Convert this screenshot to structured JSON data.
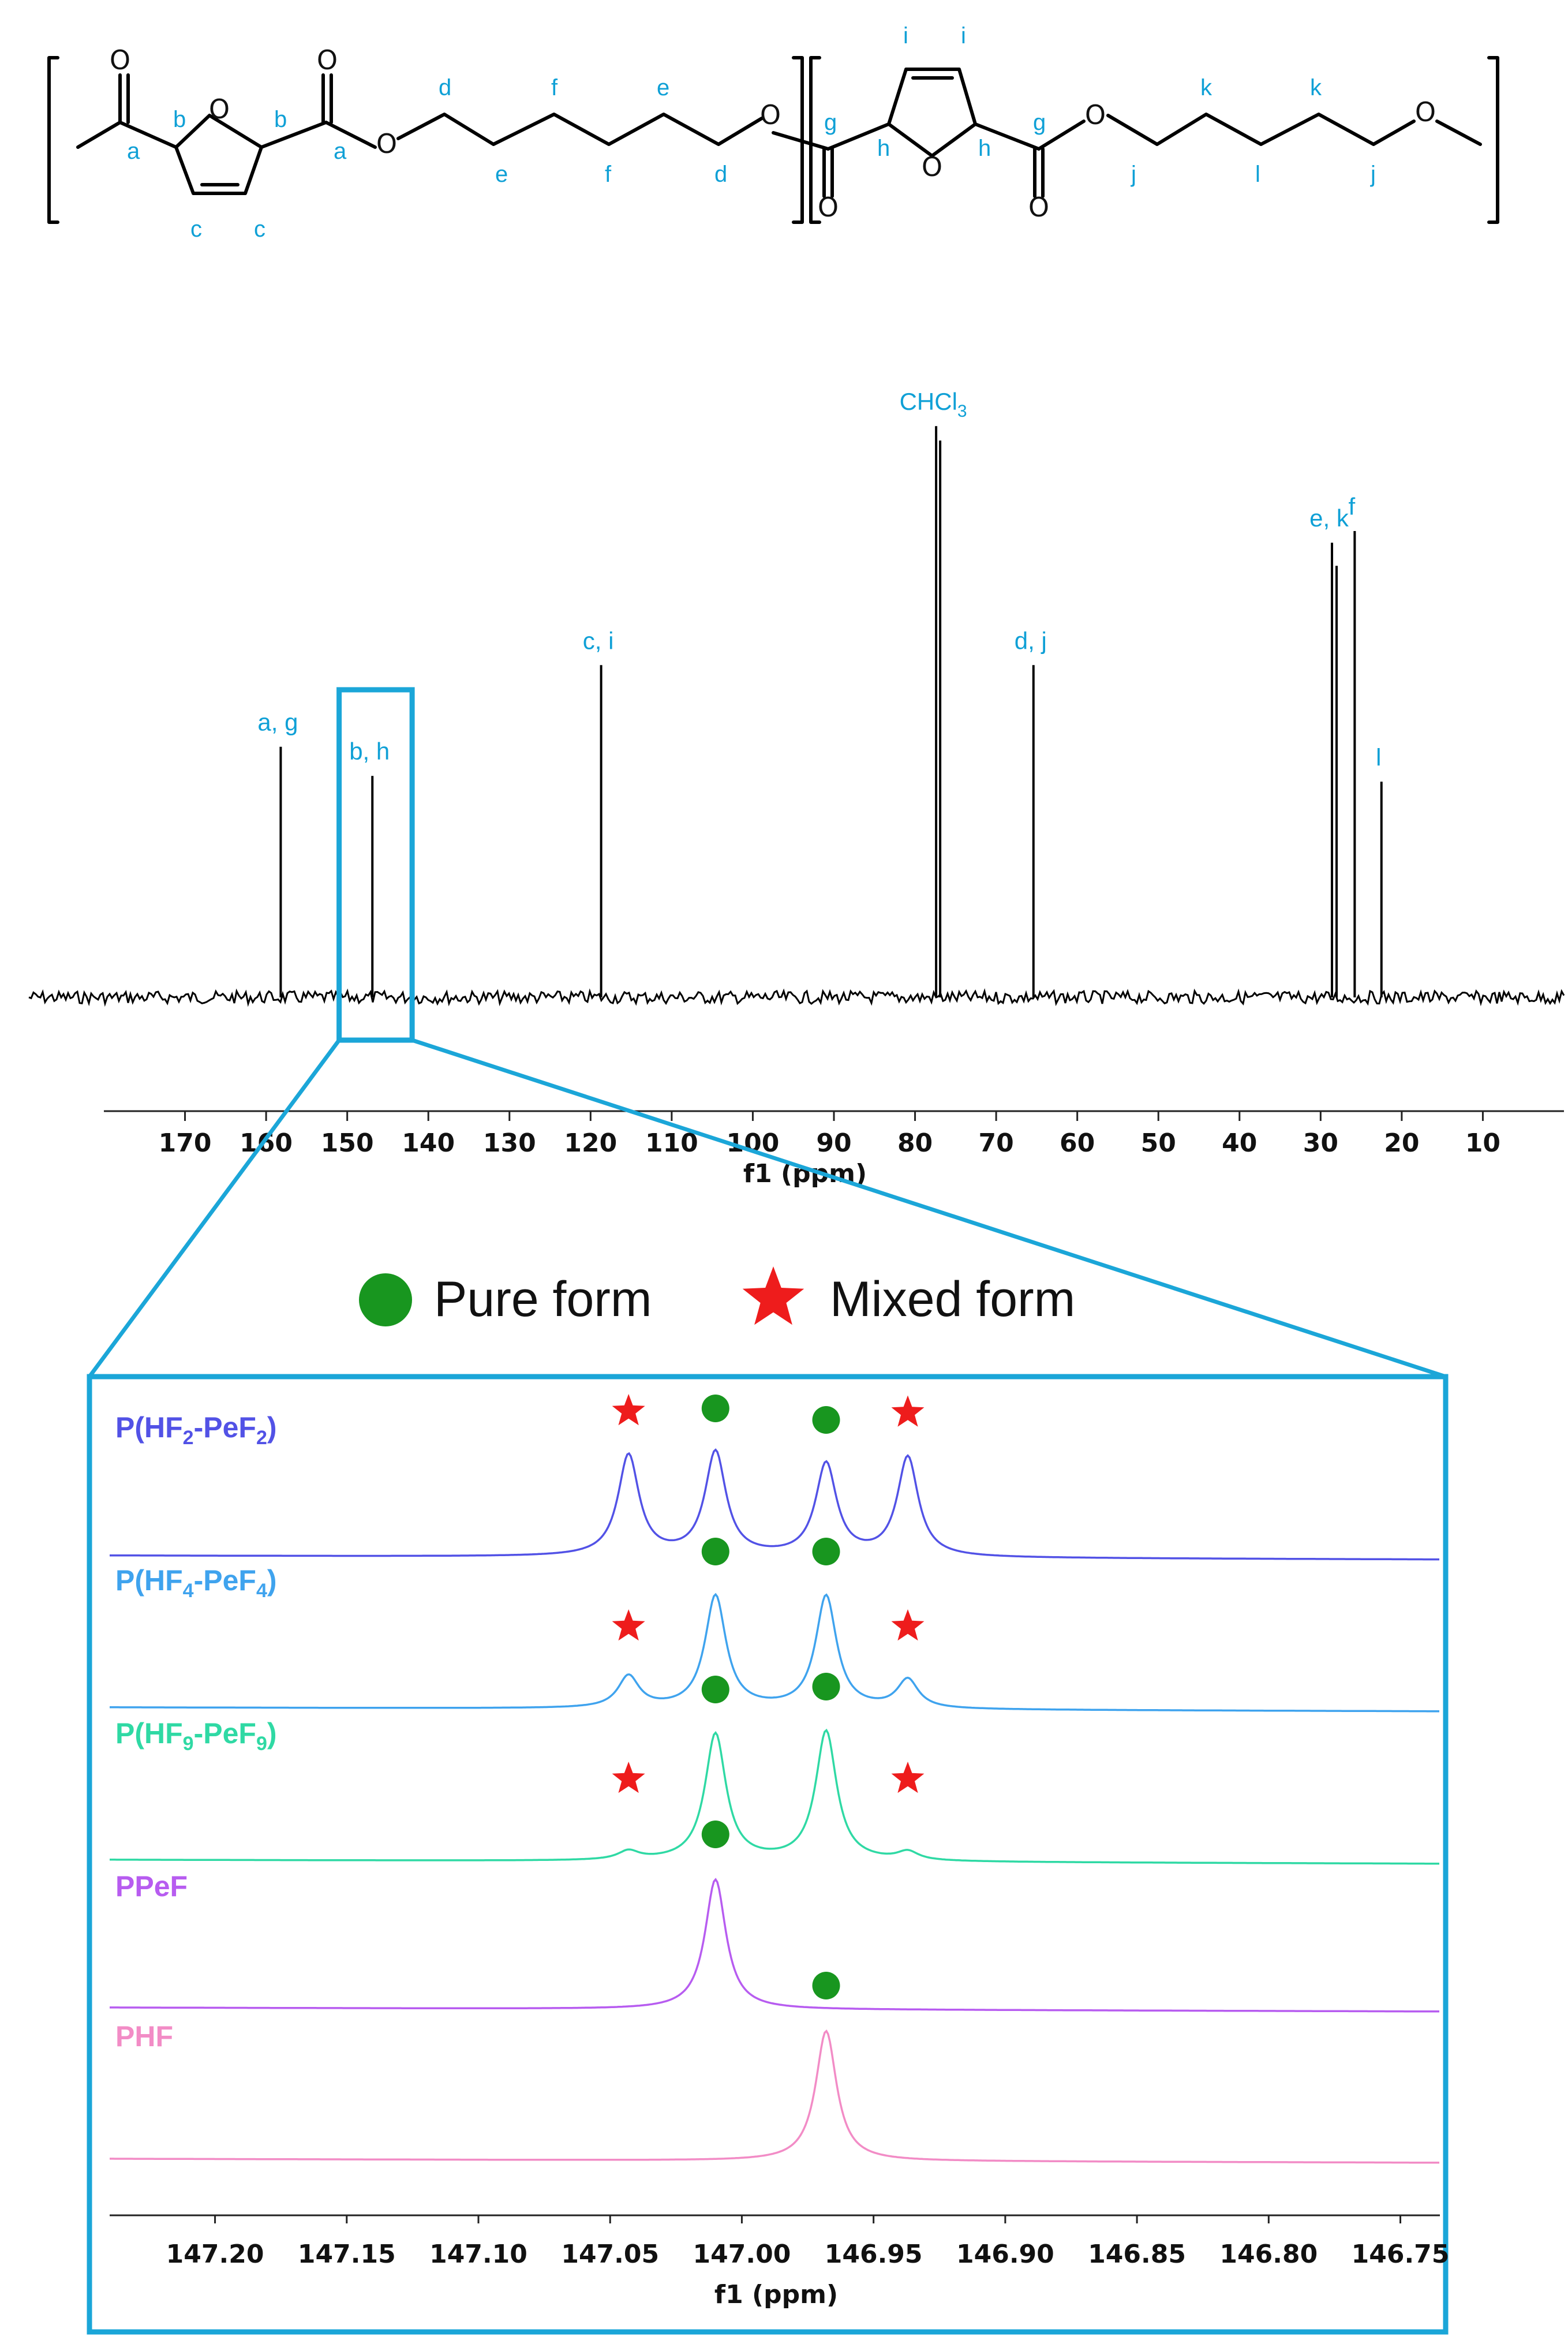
{
  "structure": {
    "atom_labels": {
      "a": "a",
      "b": "b",
      "c": "c",
      "d": "d",
      "e": "e",
      "f": "f",
      "g": "g",
      "h": "h",
      "i": "i",
      "j": "j",
      "k": "k",
      "l": "l"
    },
    "oxygen": "O"
  },
  "colors": {
    "label_cyan": "#0fa0d6",
    "frame": "#1ba6d8",
    "pure_marker": "#18961f",
    "mixed_marker": "#ee1c1c",
    "series": [
      "#5252e6",
      "#3fa3ee",
      "#2fd9a4",
      "#b75cf0",
      "#f28cc6"
    ]
  },
  "chart_data": [
    {
      "type": "line",
      "title": "",
      "xlabel": "f1 (ppm)",
      "ylabel": "",
      "xlim": [
        180,
        0
      ],
      "x_reversed": true,
      "xticks": [
        170,
        160,
        150,
        140,
        130,
        120,
        110,
        100,
        90,
        80,
        70,
        60,
        50,
        40,
        30,
        20,
        10
      ],
      "peaks": [
        {
          "ppm": 158.2,
          "height": 0.43,
          "label": "a, g"
        },
        {
          "ppm": 146.9,
          "height": 0.38,
          "label": "b, h"
        },
        {
          "ppm": 118.7,
          "height": 0.57,
          "label": "c, i"
        },
        {
          "ppm": 77.4,
          "height": 0.98,
          "label": "CHCl3",
          "label_main": "CHCl",
          "label_sub": "3"
        },
        {
          "ppm": 65.4,
          "height": 0.57,
          "label": "d, j"
        },
        {
          "ppm": 28.6,
          "height": 0.78,
          "label": "e, k"
        },
        {
          "ppm": 25.8,
          "height": 0.8,
          "label": "f"
        },
        {
          "ppm": 22.5,
          "height": 0.37,
          "label": "l"
        }
      ],
      "zoom_box": {
        "from_ppm": 151,
        "to_ppm": 142
      }
    },
    {
      "type": "line",
      "title": "",
      "xlabel": "f1 (ppm)",
      "ylabel": "",
      "xlim": [
        147.24,
        146.735
      ],
      "x_reversed": true,
      "xticks": [
        147.2,
        147.15,
        147.1,
        147.05,
        147.0,
        146.95,
        146.9,
        146.85,
        146.8,
        146.75
      ],
      "xtick_labels": [
        "147.20",
        "147.15",
        "147.10",
        "147.05",
        "147.00",
        "146.95",
        "146.90",
        "146.85",
        "146.80",
        "146.75"
      ],
      "legend": [
        {
          "marker": "circle",
          "label": "Pure form"
        },
        {
          "marker": "star",
          "label": "Mixed form"
        }
      ],
      "series": [
        {
          "name": "P(HF2-PeF2)",
          "name_parts": [
            "P(HF",
            "2",
            "-PeF",
            "2",
            ")"
          ],
          "peaks": [
            {
              "ppm": 147.043,
              "height": 0.7,
              "form": "mixed"
            },
            {
              "ppm": 147.01,
              "height": 0.72,
              "form": "pure"
            },
            {
              "ppm": 146.968,
              "height": 0.64,
              "form": "pure"
            },
            {
              "ppm": 146.937,
              "height": 0.69,
              "form": "mixed"
            }
          ]
        },
        {
          "name": "P(HF4-PeF4)",
          "name_parts": [
            "P(HF",
            "4",
            "-PeF",
            "4",
            ")"
          ],
          "peaks": [
            {
              "ppm": 147.043,
              "height": 0.22,
              "form": "mixed"
            },
            {
              "ppm": 147.01,
              "height": 0.78,
              "form": "pure"
            },
            {
              "ppm": 146.968,
              "height": 0.78,
              "form": "pure"
            },
            {
              "ppm": 146.937,
              "height": 0.2,
              "form": "mixed"
            }
          ]
        },
        {
          "name": "P(HF9-PeF9)",
          "name_parts": [
            "P(HF",
            "9",
            "-PeF",
            "9",
            ")"
          ],
          "peaks": [
            {
              "ppm": 147.043,
              "height": 0.06,
              "form": "mixed"
            },
            {
              "ppm": 147.01,
              "height": 0.88,
              "form": "pure"
            },
            {
              "ppm": 146.968,
              "height": 0.9,
              "form": "pure"
            },
            {
              "ppm": 146.937,
              "height": 0.06,
              "form": "mixed"
            }
          ]
        },
        {
          "name": "PPeF",
          "name_parts": [
            "PPeF"
          ],
          "peaks": [
            {
              "ppm": 147.01,
              "height": 0.9,
              "form": "pure"
            }
          ]
        },
        {
          "name": "PHF",
          "name_parts": [
            "PHF"
          ],
          "peaks": [
            {
              "ppm": 146.968,
              "height": 0.9,
              "form": "pure"
            }
          ]
        }
      ]
    }
  ]
}
